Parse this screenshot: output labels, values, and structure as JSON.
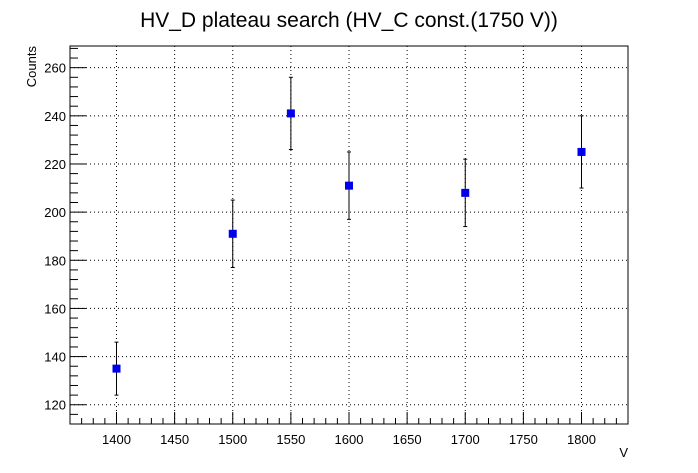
{
  "chart_data": {
    "type": "scatter",
    "title": "HV_D plateau search (HV_C const.(1750 V))",
    "xlabel": "V",
    "ylabel": "Counts",
    "xlim": [
      1360,
      1840
    ],
    "ylim": [
      112,
      269
    ],
    "x_ticks": [
      1400,
      1450,
      1500,
      1550,
      1600,
      1650,
      1700,
      1750,
      1800
    ],
    "y_ticks": [
      120,
      140,
      160,
      180,
      200,
      220,
      240,
      260
    ],
    "grid": true,
    "marker": "square",
    "marker_color": "#0000ee",
    "points": [
      {
        "x": 1400,
        "y": 135,
        "err_low": 124,
        "err_high": 146
      },
      {
        "x": 1500,
        "y": 191,
        "err_low": 177,
        "err_high": 205
      },
      {
        "x": 1550,
        "y": 241,
        "err_low": 226,
        "err_high": 256
      },
      {
        "x": 1600,
        "y": 211,
        "err_low": 197,
        "err_high": 225
      },
      {
        "x": 1700,
        "y": 208,
        "err_low": 194,
        "err_high": 222
      },
      {
        "x": 1800,
        "y": 225,
        "err_low": 210,
        "err_high": 240
      }
    ]
  }
}
